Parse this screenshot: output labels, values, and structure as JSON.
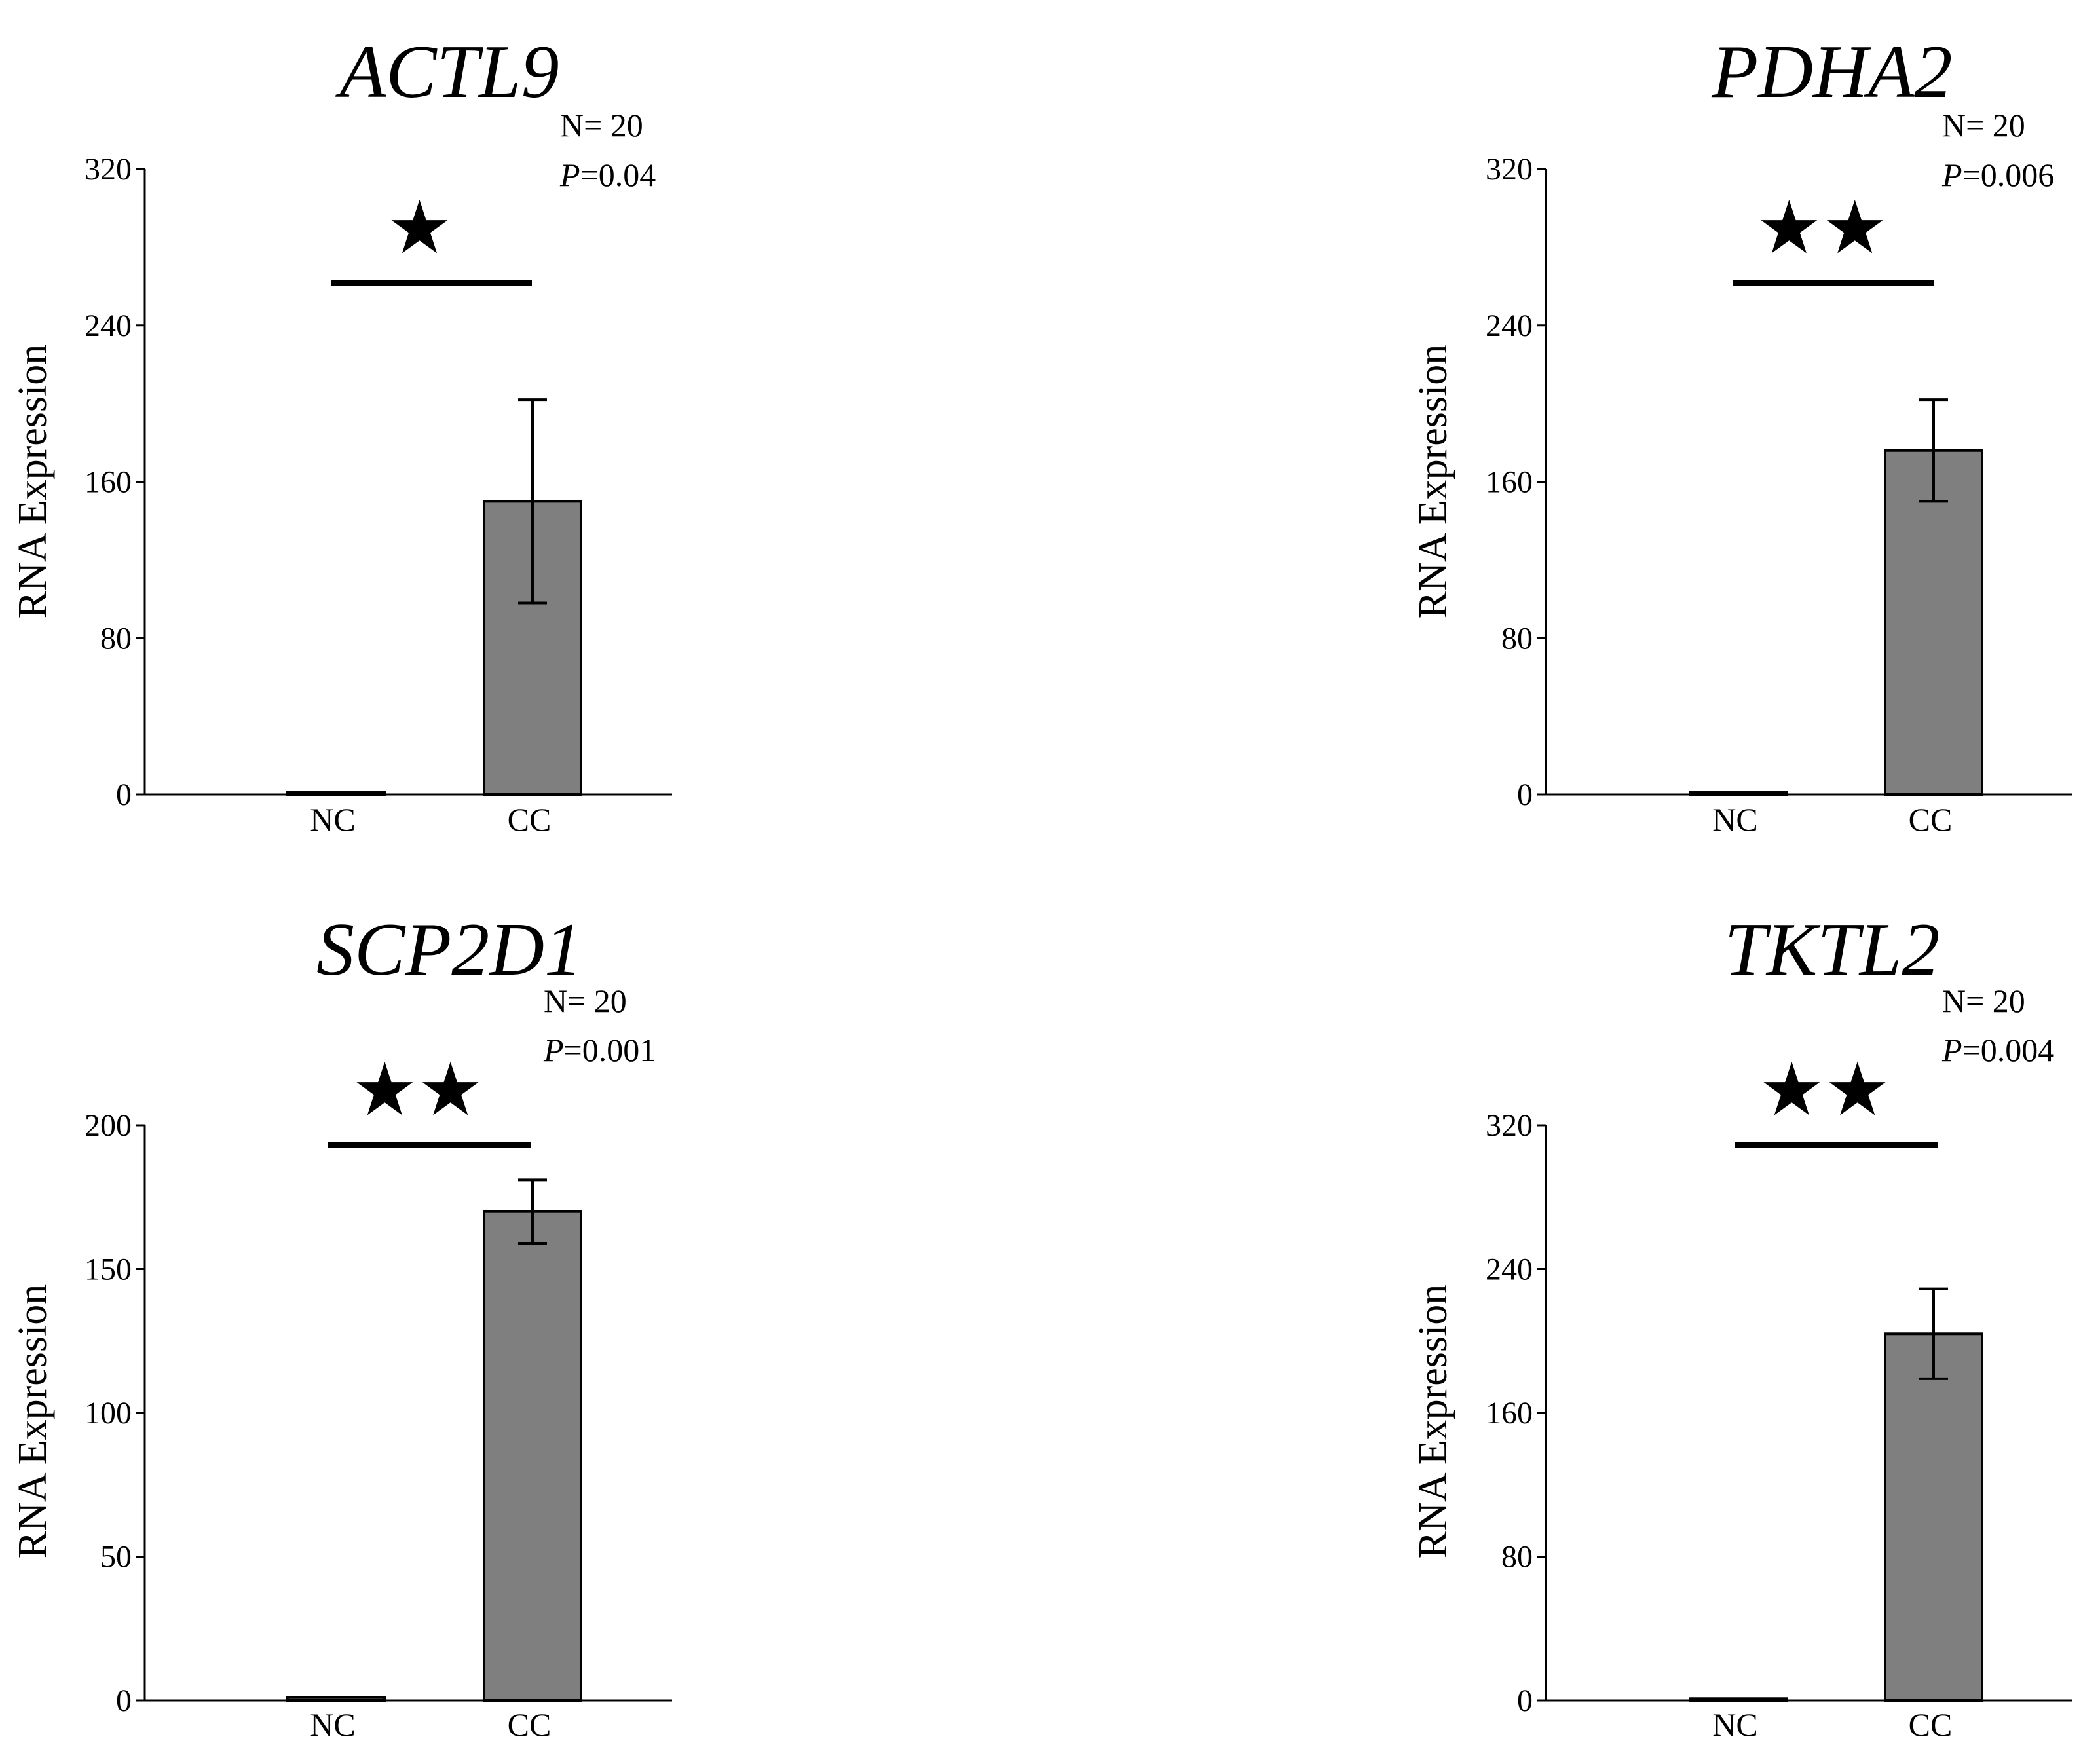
{
  "chart_data": [
    {
      "type": "bar",
      "title": "ACTL9",
      "categories": [
        "NC",
        "CC"
      ],
      "values": [
        1,
        150
      ],
      "error": [
        0,
        52
      ],
      "ylabel": "RNA Expression",
      "xlabel": "",
      "ylim": [
        0,
        320
      ],
      "yticks": [
        0,
        80,
        160,
        240,
        320
      ],
      "n_label": "N= 20",
      "p_prefix": "P",
      "p_value": "=0.04",
      "significance": "★"
    },
    {
      "type": "bar",
      "title": "PDHA2",
      "categories": [
        "NC",
        "CC"
      ],
      "values": [
        1,
        176
      ],
      "error": [
        0,
        26
      ],
      "ylabel": "RNA Expression",
      "xlabel": "",
      "ylim": [
        0,
        320
      ],
      "yticks": [
        0,
        80,
        160,
        240,
        320
      ],
      "n_label": "N= 20",
      "p_prefix": "P",
      "p_value": "=0.006",
      "significance": "★★"
    },
    {
      "type": "bar",
      "title": "SCP2D1",
      "categories": [
        "NC",
        "CC"
      ],
      "values": [
        1,
        170
      ],
      "error": [
        0,
        11
      ],
      "ylabel": "RNA Expression",
      "xlabel": "",
      "ylim": [
        0,
        200
      ],
      "yticks": [
        0,
        50,
        100,
        150,
        200
      ],
      "n_label": "N= 20",
      "p_prefix": "P",
      "p_value": "=0.001",
      "significance": "★★"
    },
    {
      "type": "bar",
      "title": "TKTL2",
      "categories": [
        "NC",
        "CC"
      ],
      "values": [
        1,
        204
      ],
      "error": [
        0,
        25
      ],
      "ylabel": "RNA Expression",
      "xlabel": "",
      "ylim": [
        0,
        320
      ],
      "yticks": [
        0,
        80,
        160,
        240,
        320
      ],
      "n_label": "N= 20",
      "p_prefix": "P",
      "p_value": "=0.004",
      "significance": "★★"
    }
  ],
  "colors": {
    "bar_fill": "#7f7f7f",
    "bar_stroke": "#000000",
    "axis": "#000000"
  }
}
